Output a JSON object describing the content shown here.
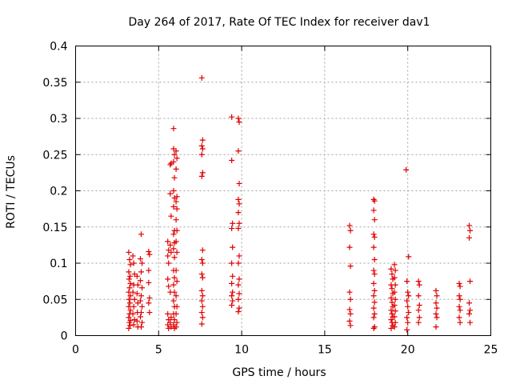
{
  "chart_data": {
    "type": "scatter",
    "title": "Day 264 of 2017, Rate Of TEC Index for receiver dav1",
    "xlabel": "GPS time / hours",
    "ylabel": "ROTI / TECUs",
    "xlim": [
      0,
      25
    ],
    "ylim": [
      0,
      0.4
    ],
    "xticks": [
      "0",
      "5",
      "10",
      "15",
      "20",
      "25"
    ],
    "yticks": [
      "0",
      "0.05",
      "0.1",
      "0.15",
      "0.2",
      "0.25",
      "0.3",
      "0.35",
      "0.4"
    ],
    "grid": true,
    "marker": "+",
    "series_color": "#e00000",
    "points": [
      [
        3.2,
        0.115
      ],
      [
        3.25,
        0.105
      ],
      [
        3.3,
        0.098
      ],
      [
        3.2,
        0.088
      ],
      [
        3.28,
        0.082
      ],
      [
        3.22,
        0.078
      ],
      [
        3.3,
        0.072
      ],
      [
        3.25,
        0.066
      ],
      [
        3.2,
        0.06
      ],
      [
        3.3,
        0.055
      ],
      [
        3.22,
        0.05
      ],
      [
        3.27,
        0.045
      ],
      [
        3.2,
        0.04
      ],
      [
        3.3,
        0.035
      ],
      [
        3.25,
        0.03
      ],
      [
        3.2,
        0.025
      ],
      [
        3.3,
        0.021
      ],
      [
        3.24,
        0.018
      ],
      [
        3.28,
        0.014
      ],
      [
        3.2,
        0.01
      ],
      [
        3.45,
        0.11
      ],
      [
        3.5,
        0.1
      ],
      [
        3.55,
        0.085
      ],
      [
        3.5,
        0.07
      ],
      [
        3.45,
        0.06
      ],
      [
        3.55,
        0.05
      ],
      [
        3.5,
        0.04
      ],
      [
        3.45,
        0.03
      ],
      [
        3.55,
        0.022
      ],
      [
        3.5,
        0.015
      ],
      [
        3.7,
        0.082
      ],
      [
        3.75,
        0.07
      ],
      [
        3.7,
        0.058
      ],
      [
        3.75,
        0.045
      ],
      [
        3.72,
        0.032
      ],
      [
        3.7,
        0.02
      ],
      [
        3.75,
        0.012
      ],
      [
        3.95,
        0.14
      ],
      [
        3.9,
        0.106
      ],
      [
        4.0,
        0.1
      ],
      [
        3.95,
        0.088
      ],
      [
        3.9,
        0.076
      ],
      [
        4.0,
        0.066
      ],
      [
        3.95,
        0.055
      ],
      [
        3.9,
        0.048
      ],
      [
        4.0,
        0.04
      ],
      [
        3.95,
        0.032
      ],
      [
        3.9,
        0.026
      ],
      [
        4.0,
        0.018
      ],
      [
        3.95,
        0.012
      ],
      [
        4.4,
        0.116
      ],
      [
        4.45,
        0.112
      ],
      [
        4.4,
        0.09
      ],
      [
        4.4,
        0.073
      ],
      [
        4.45,
        0.052
      ],
      [
        4.4,
        0.045
      ],
      [
        4.45,
        0.032
      ],
      [
        5.55,
        0.13
      ],
      [
        5.6,
        0.118
      ],
      [
        5.55,
        0.11
      ],
      [
        5.6,
        0.1
      ],
      [
        5.55,
        0.078
      ],
      [
        5.6,
        0.068
      ],
      [
        5.55,
        0.03
      ],
      [
        5.6,
        0.022
      ],
      [
        5.55,
        0.015
      ],
      [
        5.6,
        0.01
      ],
      [
        5.7,
        0.236
      ],
      [
        5.75,
        0.238
      ],
      [
        5.7,
        0.196
      ],
      [
        5.75,
        0.165
      ],
      [
        5.7,
        0.125
      ],
      [
        5.75,
        0.115
      ],
      [
        5.7,
        0.06
      ],
      [
        5.75,
        0.025
      ],
      [
        5.7,
        0.018
      ],
      [
        5.75,
        0.012
      ],
      [
        5.9,
        0.286
      ],
      [
        5.9,
        0.258
      ],
      [
        5.95,
        0.25
      ],
      [
        5.9,
        0.24
      ],
      [
        5.95,
        0.218
      ],
      [
        5.9,
        0.2
      ],
      [
        5.95,
        0.19
      ],
      [
        5.9,
        0.178
      ],
      [
        5.95,
        0.145
      ],
      [
        5.9,
        0.14
      ],
      [
        5.95,
        0.128
      ],
      [
        5.9,
        0.12
      ],
      [
        5.95,
        0.108
      ],
      [
        5.9,
        0.09
      ],
      [
        5.95,
        0.08
      ],
      [
        5.9,
        0.07
      ],
      [
        5.95,
        0.06
      ],
      [
        5.9,
        0.048
      ],
      [
        5.95,
        0.04
      ],
      [
        5.9,
        0.03
      ],
      [
        5.95,
        0.022
      ],
      [
        5.9,
        0.015
      ],
      [
        5.95,
        0.01
      ],
      [
        6.05,
        0.255
      ],
      [
        6.1,
        0.245
      ],
      [
        6.05,
        0.23
      ],
      [
        6.1,
        0.192
      ],
      [
        6.05,
        0.185
      ],
      [
        6.1,
        0.175
      ],
      [
        6.05,
        0.16
      ],
      [
        6.1,
        0.145
      ],
      [
        6.05,
        0.13
      ],
      [
        6.1,
        0.115
      ],
      [
        6.05,
        0.09
      ],
      [
        6.1,
        0.075
      ],
      [
        6.05,
        0.055
      ],
      [
        6.1,
        0.04
      ],
      [
        6.05,
        0.03
      ],
      [
        6.1,
        0.018
      ],
      [
        6.05,
        0.012
      ],
      [
        7.6,
        0.356
      ],
      [
        7.65,
        0.27
      ],
      [
        7.6,
        0.262
      ],
      [
        7.65,
        0.258
      ],
      [
        7.6,
        0.25
      ],
      [
        7.65,
        0.225
      ],
      [
        7.6,
        0.22
      ],
      [
        7.65,
        0.118
      ],
      [
        7.6,
        0.105
      ],
      [
        7.65,
        0.1
      ],
      [
        7.6,
        0.085
      ],
      [
        7.65,
        0.08
      ],
      [
        7.6,
        0.062
      ],
      [
        7.65,
        0.055
      ],
      [
        7.6,
        0.048
      ],
      [
        7.65,
        0.04
      ],
      [
        7.6,
        0.032
      ],
      [
        7.65,
        0.025
      ],
      [
        7.6,
        0.016
      ],
      [
        9.4,
        0.302
      ],
      [
        9.4,
        0.242
      ],
      [
        9.45,
        0.155
      ],
      [
        9.4,
        0.148
      ],
      [
        9.45,
        0.122
      ],
      [
        9.4,
        0.1
      ],
      [
        9.45,
        0.082
      ],
      [
        9.4,
        0.072
      ],
      [
        9.45,
        0.06
      ],
      [
        9.4,
        0.055
      ],
      [
        9.45,
        0.048
      ],
      [
        9.4,
        0.042
      ],
      [
        9.8,
        0.3
      ],
      [
        9.85,
        0.295
      ],
      [
        9.8,
        0.255
      ],
      [
        9.85,
        0.21
      ],
      [
        9.8,
        0.188
      ],
      [
        9.85,
        0.182
      ],
      [
        9.8,
        0.17
      ],
      [
        9.85,
        0.155
      ],
      [
        9.8,
        0.148
      ],
      [
        9.85,
        0.11
      ],
      [
        9.8,
        0.1
      ],
      [
        9.85,
        0.078
      ],
      [
        9.8,
        0.07
      ],
      [
        9.85,
        0.058
      ],
      [
        9.8,
        0.05
      ],
      [
        9.85,
        0.038
      ],
      [
        9.8,
        0.033
      ],
      [
        16.5,
        0.152
      ],
      [
        16.55,
        0.145
      ],
      [
        16.5,
        0.122
      ],
      [
        16.55,
        0.096
      ],
      [
        16.5,
        0.06
      ],
      [
        16.55,
        0.05
      ],
      [
        16.5,
        0.036
      ],
      [
        16.55,
        0.03
      ],
      [
        16.5,
        0.02
      ],
      [
        16.55,
        0.014
      ],
      [
        17.95,
        0.188
      ],
      [
        18.0,
        0.186
      ],
      [
        17.95,
        0.173
      ],
      [
        18.0,
        0.16
      ],
      [
        17.95,
        0.14
      ],
      [
        18.0,
        0.136
      ],
      [
        17.95,
        0.122
      ],
      [
        18.0,
        0.105
      ],
      [
        17.95,
        0.09
      ],
      [
        18.0,
        0.085
      ],
      [
        17.95,
        0.072
      ],
      [
        18.0,
        0.062
      ],
      [
        17.95,
        0.055
      ],
      [
        18.0,
        0.046
      ],
      [
        17.95,
        0.038
      ],
      [
        18.0,
        0.03
      ],
      [
        17.95,
        0.025
      ],
      [
        18.0,
        0.012
      ],
      [
        17.95,
        0.01
      ],
      [
        19.0,
        0.092
      ],
      [
        19.05,
        0.085
      ],
      [
        19.1,
        0.078
      ],
      [
        19.0,
        0.07
      ],
      [
        19.05,
        0.065
      ],
      [
        19.1,
        0.058
      ],
      [
        19.0,
        0.052
      ],
      [
        19.05,
        0.046
      ],
      [
        19.1,
        0.04
      ],
      [
        19.0,
        0.035
      ],
      [
        19.05,
        0.03
      ],
      [
        19.1,
        0.026
      ],
      [
        19.0,
        0.022
      ],
      [
        19.05,
        0.018
      ],
      [
        19.1,
        0.014
      ],
      [
        19.0,
        0.01
      ],
      [
        19.2,
        0.098
      ],
      [
        19.25,
        0.09
      ],
      [
        19.2,
        0.08
      ],
      [
        19.25,
        0.07
      ],
      [
        19.2,
        0.06
      ],
      [
        19.25,
        0.05
      ],
      [
        19.2,
        0.042
      ],
      [
        19.25,
        0.034
      ],
      [
        19.2,
        0.026
      ],
      [
        19.25,
        0.018
      ],
      [
        19.2,
        0.012
      ],
      [
        19.9,
        0.229
      ],
      [
        20.05,
        0.109
      ],
      [
        19.95,
        0.075
      ],
      [
        20.0,
        0.06
      ],
      [
        20.05,
        0.055
      ],
      [
        19.95,
        0.048
      ],
      [
        20.0,
        0.04
      ],
      [
        20.05,
        0.032
      ],
      [
        19.95,
        0.025
      ],
      [
        20.0,
        0.018
      ],
      [
        19.95,
        0.008
      ],
      [
        20.65,
        0.075
      ],
      [
        20.7,
        0.07
      ],
      [
        20.65,
        0.055
      ],
      [
        20.7,
        0.042
      ],
      [
        20.65,
        0.035
      ],
      [
        20.7,
        0.025
      ],
      [
        20.65,
        0.018
      ],
      [
        21.7,
        0.062
      ],
      [
        21.75,
        0.055
      ],
      [
        21.7,
        0.045
      ],
      [
        21.75,
        0.038
      ],
      [
        21.7,
        0.03
      ],
      [
        21.75,
        0.025
      ],
      [
        21.7,
        0.012
      ],
      [
        23.1,
        0.072
      ],
      [
        23.15,
        0.068
      ],
      [
        23.1,
        0.055
      ],
      [
        23.15,
        0.05
      ],
      [
        23.1,
        0.04
      ],
      [
        23.15,
        0.035
      ],
      [
        23.1,
        0.025
      ],
      [
        23.15,
        0.018
      ],
      [
        23.7,
        0.152
      ],
      [
        23.75,
        0.145
      ],
      [
        23.7,
        0.135
      ],
      [
        23.75,
        0.075
      ],
      [
        23.7,
        0.045
      ],
      [
        23.75,
        0.035
      ],
      [
        23.7,
        0.03
      ],
      [
        23.75,
        0.018
      ]
    ]
  }
}
